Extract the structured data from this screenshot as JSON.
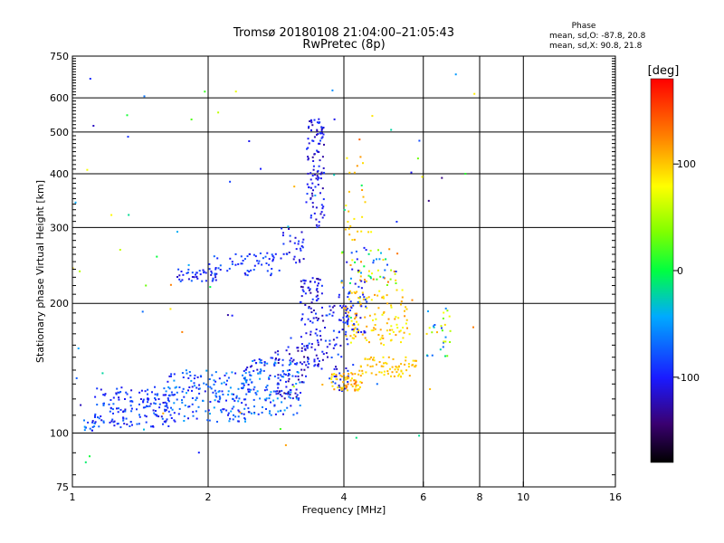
{
  "chart_data": {
    "type": "scatter",
    "title": "Tromsø 20180108 21:04:00–21:05:43",
    "subtitle": "RwPretec (8p)",
    "xlabel": "Frequency [MHz]",
    "ylabel": "Stationary phase Virtual Height [km]",
    "x_scale": "log",
    "y_scale": "log",
    "xlim": [
      1,
      16
    ],
    "ylim": [
      75,
      750
    ],
    "x_ticks": [
      1,
      2,
      4,
      6,
      8,
      10,
      16
    ],
    "y_ticks": [
      75,
      100,
      200,
      300,
      400,
      500,
      600,
      750
    ],
    "grid": true,
    "color_scale": {
      "label": "[deg]",
      "min": -180,
      "max": 180,
      "ticks": [
        100,
        0,
        -100
      ],
      "colormap": "rainbow"
    },
    "phase_stats": {
      "heading": "Phase",
      "line_o": "mean, sd,O: -87.8, 20.8",
      "line_x": "mean, sd,X:  90.8, 21.8"
    },
    "clusters": [
      {
        "x": [
          1.05,
          1.12
        ],
        "y": [
          100,
          108
        ],
        "phase": [
          -120,
          -40
        ],
        "n": 14
      },
      {
        "x": [
          1.12,
          1.65
        ],
        "y": [
          103,
          128
        ],
        "phase": [
          -115,
          -65
        ],
        "n": 150
      },
      {
        "x": [
          1.6,
          2.5
        ],
        "y": [
          106,
          140
        ],
        "phase": [
          -110,
          -45
        ],
        "n": 190
      },
      {
        "x": [
          2.4,
          3.2
        ],
        "y": [
          110,
          150
        ],
        "phase": [
          -120,
          -40
        ],
        "n": 150
      },
      {
        "x": [
          2.8,
          3.3
        ],
        "y": [
          120,
          160
        ],
        "phase": [
          -140,
          -80
        ],
        "n": 50
      },
      {
        "x": [
          1.7,
          2.1
        ],
        "y": [
          225,
          240
        ],
        "phase": [
          -120,
          -70
        ],
        "n": 40
      },
      {
        "x": [
          2.0,
          2.9
        ],
        "y": [
          232,
          262
        ],
        "phase": [
          -110,
          -70
        ],
        "n": 60
      },
      {
        "x": [
          2.9,
          3.3
        ],
        "y": [
          248,
          300
        ],
        "phase": [
          -125,
          -80
        ],
        "n": 30
      },
      {
        "x": [
          3.2,
          3.6
        ],
        "y": [
          140,
          230
        ],
        "phase": [
          -135,
          -85
        ],
        "n": 110
      },
      {
        "x": [
          3.3,
          3.62
        ],
        "y": [
          300,
          540
        ],
        "phase": [
          -130,
          -85
        ],
        "n": 110
      },
      {
        "x": [
          3.6,
          4.1
        ],
        "y": [
          125,
          200
        ],
        "phase": [
          -125,
          -70
        ],
        "n": 60
      },
      {
        "x": [
          3.75,
          4.4
        ],
        "y": [
          125,
          138
        ],
        "phase": [
          80,
          135
        ],
        "n": 60
      },
      {
        "x": [
          4.0,
          5.6
        ],
        "y": [
          160,
          215
        ],
        "phase": [
          70,
          120
        ],
        "n": 120
      },
      {
        "x": [
          4.3,
          5.8
        ],
        "y": [
          135,
          150
        ],
        "phase": [
          85,
          115
        ],
        "n": 70
      },
      {
        "x": [
          3.9,
          5.3
        ],
        "y": [
          220,
          270
        ],
        "phase": [
          -110,
          140
        ],
        "n": 60
      },
      {
        "x": [
          4.0,
          4.6
        ],
        "y": [
          280,
          440
        ],
        "phase": [
          80,
          120
        ],
        "n": 25
      },
      {
        "x": [
          6.1,
          6.9
        ],
        "y": [
          150,
          195
        ],
        "phase": [
          -100,
          110
        ],
        "n": 30
      },
      {
        "x": [
          3.9,
          4.5
        ],
        "y": [
          170,
          230
        ],
        "phase": [
          -115,
          -80
        ],
        "n": 50
      },
      {
        "x": [
          1.0,
          7.8
        ],
        "y": [
          85,
          700
        ],
        "phase": [
          -140,
          140
        ],
        "n": 80
      }
    ]
  }
}
